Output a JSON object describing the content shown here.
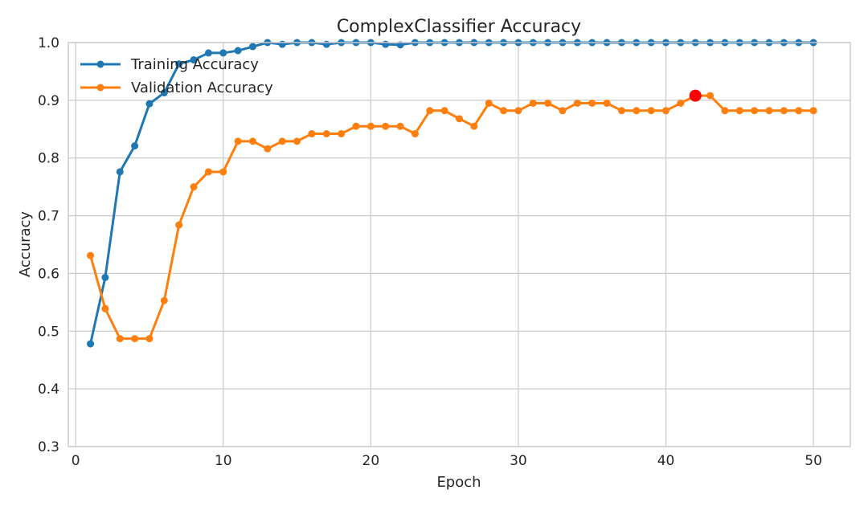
{
  "chart_data": {
    "type": "line",
    "title": "ComplexClassifier Accuracy",
    "xlabel": "Epoch",
    "ylabel": "Accuracy",
    "xlim": [
      -0.5,
      52.5
    ],
    "ylim": [
      0.3,
      1.0
    ],
    "xticks": [
      0,
      10,
      20,
      30,
      40,
      50
    ],
    "yticks": [
      0.3,
      0.4,
      0.5,
      0.6,
      0.7,
      0.8,
      0.9,
      1.0
    ],
    "grid": true,
    "legend_position": "top-left",
    "x": [
      1,
      2,
      3,
      4,
      5,
      6,
      7,
      8,
      9,
      10,
      11,
      12,
      13,
      14,
      15,
      16,
      17,
      18,
      19,
      20,
      21,
      22,
      23,
      24,
      25,
      26,
      27,
      28,
      29,
      30,
      31,
      32,
      33,
      34,
      35,
      36,
      37,
      38,
      39,
      40,
      41,
      42,
      43,
      44,
      45,
      46,
      47,
      48,
      49,
      50
    ],
    "series": [
      {
        "name": "Training Accuracy",
        "color": "#1f77b4",
        "values": [
          0.478,
          0.593,
          0.776,
          0.821,
          0.894,
          0.913,
          0.963,
          0.97,
          0.982,
          0.982,
          0.986,
          0.993,
          1.0,
          0.997,
          1.0,
          1.0,
          0.997,
          1.0,
          1.0,
          1.0,
          0.997,
          0.996,
          1.0,
          1.0,
          1.0,
          1.0,
          1.0,
          1.0,
          1.0,
          1.0,
          1.0,
          1.0,
          1.0,
          1.0,
          1.0,
          1.0,
          1.0,
          1.0,
          1.0,
          1.0,
          1.0,
          1.0,
          1.0,
          1.0,
          1.0,
          1.0,
          1.0,
          1.0,
          1.0,
          1.0
        ]
      },
      {
        "name": "Validation Accuracy",
        "color": "#ff7f0e",
        "values": [
          0.631,
          0.539,
          0.487,
          0.487,
          0.487,
          0.553,
          0.684,
          0.75,
          0.776,
          0.776,
          0.829,
          0.829,
          0.816,
          0.829,
          0.829,
          0.842,
          0.842,
          0.842,
          0.855,
          0.855,
          0.855,
          0.855,
          0.842,
          0.882,
          0.882,
          0.868,
          0.855,
          0.895,
          0.882,
          0.882,
          0.895,
          0.895,
          0.882,
          0.895,
          0.895,
          0.895,
          0.882,
          0.882,
          0.882,
          0.882,
          0.895,
          0.908,
          0.908,
          0.882,
          0.882,
          0.882,
          0.882,
          0.882,
          0.882,
          0.882
        ]
      }
    ],
    "annotations": [
      {
        "type": "marker",
        "x": 42,
        "y": 0.908,
        "color": "#ff0000"
      }
    ]
  }
}
